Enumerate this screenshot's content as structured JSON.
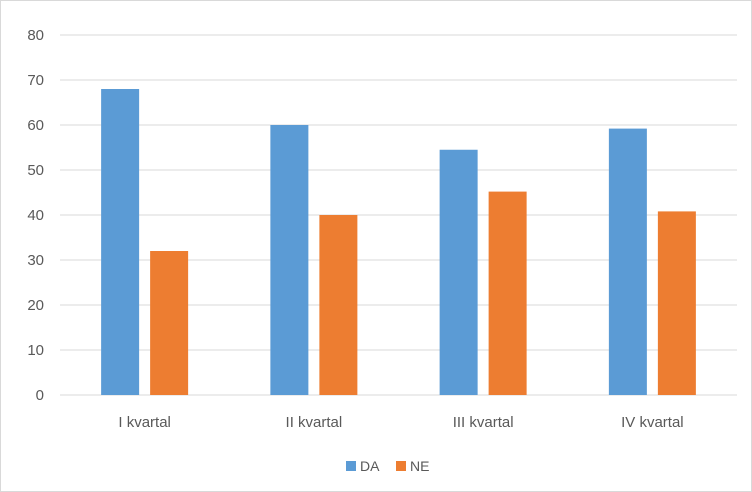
{
  "chart_data": {
    "type": "bar",
    "categories": [
      "I kvartal",
      "II kvartal",
      "III kvartal",
      "IV kvartal"
    ],
    "series": [
      {
        "name": "DA",
        "color": "#5b9bd5",
        "values": [
          68,
          60,
          54.5,
          59.2
        ]
      },
      {
        "name": "NE",
        "color": "#ed7d31",
        "values": [
          32,
          40,
          45.2,
          40.8
        ]
      }
    ],
    "title": "",
    "xlabel": "",
    "ylabel": "",
    "ylim": [
      0,
      80
    ],
    "yticks": [
      0,
      10,
      20,
      30,
      40,
      50,
      60,
      70,
      80
    ],
    "grid": true,
    "legend_position": "bottom",
    "gridline_color": "#d9d9d9"
  }
}
